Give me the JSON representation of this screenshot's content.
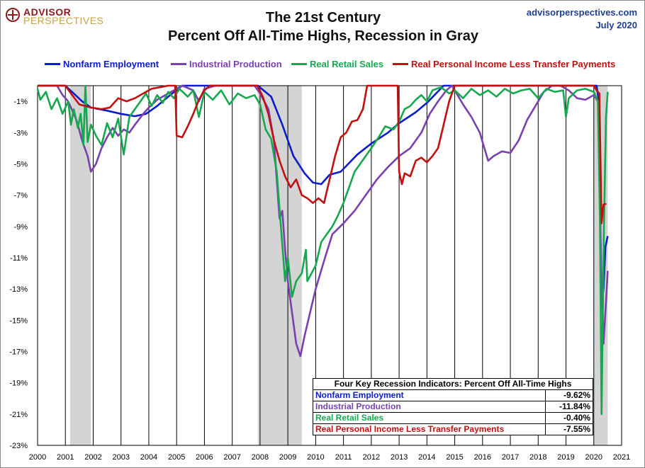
{
  "header": {
    "logo_line1": "ADVISOR",
    "logo_line2": "PERSPECTIVES",
    "site": "advisorperspectives.com",
    "date": "July 2020",
    "title_line1": "The 21st Century",
    "title_line2": "Percent Off All-Time Highs, Recession in Gray"
  },
  "chart_data": {
    "type": "line",
    "title": "The 21st Century Percent Off All-Time Highs, Recession in Gray",
    "ylim": [
      -23,
      0
    ],
    "y_ticks": [
      "-1%",
      "-3%",
      "-5%",
      "-7%",
      "-9%",
      "-11%",
      "-13%",
      "-15%",
      "-17%",
      "-19%",
      "-21%",
      "-23%"
    ],
    "x_ticks": [
      "2000",
      "2001",
      "2002",
      "2003",
      "2004",
      "2005",
      "2006",
      "2007",
      "2008",
      "2009",
      "2010",
      "2011",
      "2012",
      "2013",
      "2014",
      "2015",
      "2016",
      "2017",
      "2018",
      "2019",
      "2020",
      "2021"
    ],
    "xlim": [
      2000,
      2021
    ],
    "recessions": [
      [
        2001.17,
        2001.92
      ],
      [
        2007.92,
        2009.5
      ],
      [
        2020.0,
        2020.5
      ]
    ],
    "grid": "vertical gridlines at each year",
    "legend_position": "top",
    "series": [
      {
        "name": "Nonfarm Employment",
        "color": "#0a1ccc",
        "points": [
          [
            2000,
            0
          ],
          [
            2001.0,
            0
          ],
          [
            2001.3,
            -0.5
          ],
          [
            2001.6,
            -1.0
          ],
          [
            2001.92,
            -1.4
          ],
          [
            2002.5,
            -1.6
          ],
          [
            2003.0,
            -1.8
          ],
          [
            2003.5,
            -1.95
          ],
          [
            2003.9,
            -1.8
          ],
          [
            2004.3,
            -1.3
          ],
          [
            2004.7,
            -0.7
          ],
          [
            2005.2,
            0
          ],
          [
            2007.92,
            0
          ],
          [
            2008.4,
            -0.7
          ],
          [
            2008.8,
            -2.5
          ],
          [
            2009.2,
            -4.5
          ],
          [
            2009.6,
            -5.6
          ],
          [
            2009.9,
            -6.2
          ],
          [
            2010.2,
            -6.3
          ],
          [
            2010.5,
            -5.7
          ],
          [
            2010.9,
            -5.5
          ],
          [
            2011.5,
            -4.4
          ],
          [
            2012.0,
            -3.7
          ],
          [
            2012.6,
            -3.0
          ],
          [
            2013.0,
            -2.4
          ],
          [
            2013.6,
            -1.7
          ],
          [
            2014.0,
            -1.1
          ],
          [
            2014.6,
            0
          ],
          [
            2020.1,
            0
          ],
          [
            2020.18,
            -1
          ],
          [
            2020.27,
            -14.0
          ],
          [
            2020.35,
            -13.0
          ],
          [
            2020.42,
            -10.3
          ],
          [
            2020.5,
            -9.62
          ]
        ]
      },
      {
        "name": "Industrial Production",
        "color": "#7a3fb0",
        "points": [
          [
            2000,
            0
          ],
          [
            2000.7,
            0
          ],
          [
            2000.9,
            -0.6
          ],
          [
            2001.1,
            -1.0
          ],
          [
            2001.4,
            -2.2
          ],
          [
            2001.6,
            -3.5
          ],
          [
            2001.8,
            -4.5
          ],
          [
            2001.92,
            -5.5
          ],
          [
            2002.1,
            -5.0
          ],
          [
            2002.3,
            -4.0
          ],
          [
            2002.5,
            -3.3
          ],
          [
            2002.7,
            -2.7
          ],
          [
            2002.9,
            -3.2
          ],
          [
            2003.1,
            -2.8
          ],
          [
            2003.3,
            -3.0
          ],
          [
            2003.5,
            -2.5
          ],
          [
            2003.8,
            -1.8
          ],
          [
            2004.0,
            -1.4
          ],
          [
            2004.3,
            -0.9
          ],
          [
            2004.6,
            -0.6
          ],
          [
            2004.9,
            -0.3
          ],
          [
            2005.2,
            0
          ],
          [
            2005.6,
            -0.3
          ],
          [
            2005.8,
            -1.0
          ],
          [
            2006.0,
            -0.2
          ],
          [
            2006.4,
            0
          ],
          [
            2007.8,
            0
          ],
          [
            2008.0,
            -0.5
          ],
          [
            2008.3,
            -1.5
          ],
          [
            2008.5,
            -3.5
          ],
          [
            2008.7,
            -8.5
          ],
          [
            2008.8,
            -8.0
          ],
          [
            2008.9,
            -10.5
          ],
          [
            2009.0,
            -12.5
          ],
          [
            2009.15,
            -14.5
          ],
          [
            2009.3,
            -16.5
          ],
          [
            2009.45,
            -17.3
          ],
          [
            2009.6,
            -16.0
          ],
          [
            2009.8,
            -14.5
          ],
          [
            2010.0,
            -13.0
          ],
          [
            2010.3,
            -11.2
          ],
          [
            2010.6,
            -9.5
          ],
          [
            2011.0,
            -8.8
          ],
          [
            2011.4,
            -8.0
          ],
          [
            2011.8,
            -7.0
          ],
          [
            2012.2,
            -6.0
          ],
          [
            2012.6,
            -5.2
          ],
          [
            2013.0,
            -4.5
          ],
          [
            2013.4,
            -4.0
          ],
          [
            2013.8,
            -3.0
          ],
          [
            2014.1,
            -1.8
          ],
          [
            2014.4,
            -1.0
          ],
          [
            2014.7,
            -0.3
          ],
          [
            2014.9,
            0
          ],
          [
            2015.0,
            -0.3
          ],
          [
            2015.3,
            -1.2
          ],
          [
            2015.6,
            -2.0
          ],
          [
            2015.9,
            -3.0
          ],
          [
            2016.2,
            -4.8
          ],
          [
            2016.4,
            -4.5
          ],
          [
            2016.7,
            -4.2
          ],
          [
            2017.0,
            -4.3
          ],
          [
            2017.3,
            -3.5
          ],
          [
            2017.6,
            -2.2
          ],
          [
            2017.9,
            -1.3
          ],
          [
            2018.2,
            -0.4
          ],
          [
            2018.5,
            0
          ],
          [
            2018.8,
            0
          ],
          [
            2019.1,
            -0.3
          ],
          [
            2019.4,
            -0.8
          ],
          [
            2019.7,
            -0.9
          ],
          [
            2020.0,
            -0.6
          ],
          [
            2020.15,
            -1.0
          ],
          [
            2020.27,
            -12.0
          ],
          [
            2020.35,
            -16.5
          ],
          [
            2020.45,
            -13.5
          ],
          [
            2020.5,
            -11.84
          ]
        ]
      },
      {
        "name": "Real Retail Sales",
        "color": "#16a84e",
        "points": [
          [
            2000,
            -0.2
          ],
          [
            2000.1,
            -0.9
          ],
          [
            2000.3,
            -0.4
          ],
          [
            2000.5,
            -1.5
          ],
          [
            2000.7,
            -0.8
          ],
          [
            2000.9,
            -1.8
          ],
          [
            2001.1,
            -1.0
          ],
          [
            2001.2,
            -2.5
          ],
          [
            2001.3,
            -1.5
          ],
          [
            2001.45,
            -2.7
          ],
          [
            2001.55,
            -1.8
          ],
          [
            2001.65,
            -3.8
          ],
          [
            2001.72,
            0
          ],
          [
            2001.8,
            -3.6
          ],
          [
            2001.92,
            -2.5
          ],
          [
            2002.1,
            -3.2
          ],
          [
            2002.3,
            -3.8
          ],
          [
            2002.5,
            -2.4
          ],
          [
            2002.7,
            -3.3
          ],
          [
            2002.9,
            -2.1
          ],
          [
            2003.1,
            -4.4
          ],
          [
            2003.3,
            -2.0
          ],
          [
            2003.5,
            -1.5
          ],
          [
            2003.7,
            -1.0
          ],
          [
            2003.9,
            -0.5
          ],
          [
            2004.1,
            -1.3
          ],
          [
            2004.3,
            -0.6
          ],
          [
            2004.5,
            -1.1
          ],
          [
            2004.7,
            -0.4
          ],
          [
            2004.9,
            -0.8
          ],
          [
            2005.1,
            -0.2
          ],
          [
            2005.4,
            -0.7
          ],
          [
            2005.6,
            -0.3
          ],
          [
            2005.8,
            -2.0
          ],
          [
            2006.0,
            -0.4
          ],
          [
            2006.3,
            -0.9
          ],
          [
            2006.6,
            -0.3
          ],
          [
            2006.9,
            -1.2
          ],
          [
            2007.2,
            -0.5
          ],
          [
            2007.5,
            -0.8
          ],
          [
            2007.8,
            -0.6
          ],
          [
            2008.0,
            -1.2
          ],
          [
            2008.2,
            -2.8
          ],
          [
            2008.4,
            -3.4
          ],
          [
            2008.6,
            -5.5
          ],
          [
            2008.75,
            -9.0
          ],
          [
            2008.9,
            -12.5
          ],
          [
            2009.0,
            -11.0
          ],
          [
            2009.15,
            -13.5
          ],
          [
            2009.3,
            -12.5
          ],
          [
            2009.5,
            -12.0
          ],
          [
            2009.65,
            -10.5
          ],
          [
            2009.7,
            -12.5
          ],
          [
            2009.85,
            -12.0
          ],
          [
            2010.0,
            -11.5
          ],
          [
            2010.2,
            -10.0
          ],
          [
            2010.4,
            -9.5
          ],
          [
            2010.6,
            -9.0
          ],
          [
            2010.8,
            -8.3
          ],
          [
            2011.0,
            -7.5
          ],
          [
            2011.2,
            -6.5
          ],
          [
            2011.4,
            -5.5
          ],
          [
            2011.6,
            -5.0
          ],
          [
            2011.8,
            -4.5
          ],
          [
            2012.0,
            -4.0
          ],
          [
            2012.3,
            -3.2
          ],
          [
            2012.5,
            -2.6
          ],
          [
            2012.8,
            -2.8
          ],
          [
            2013.0,
            -2.3
          ],
          [
            2013.2,
            -1.5
          ],
          [
            2013.4,
            -1.3
          ],
          [
            2013.6,
            -0.9
          ],
          [
            2013.8,
            -0.6
          ],
          [
            2014.0,
            -1.0
          ],
          [
            2014.2,
            -0.3
          ],
          [
            2014.5,
            -0.1
          ],
          [
            2014.8,
            -0.5
          ],
          [
            2015.0,
            -0.3
          ],
          [
            2015.3,
            -0.8
          ],
          [
            2015.6,
            -0.2
          ],
          [
            2015.9,
            -0.6
          ],
          [
            2016.2,
            -0.3
          ],
          [
            2016.5,
            -0.7
          ],
          [
            2016.8,
            -0.2
          ],
          [
            2017.1,
            -0.5
          ],
          [
            2017.4,
            -0.3
          ],
          [
            2017.7,
            -0.2
          ],
          [
            2018.0,
            -0.8
          ],
          [
            2018.3,
            -0.2
          ],
          [
            2018.6,
            -0.4
          ],
          [
            2018.9,
            -0.3
          ],
          [
            2019.0,
            -2.0
          ],
          [
            2019.1,
            -0.8
          ],
          [
            2019.4,
            -0.3
          ],
          [
            2019.7,
            -0.2
          ],
          [
            2020.0,
            -0.4
          ],
          [
            2020.15,
            -1.0
          ],
          [
            2020.22,
            -8.5
          ],
          [
            2020.28,
            -21.0
          ],
          [
            2020.36,
            -9.5
          ],
          [
            2020.44,
            -2.0
          ],
          [
            2020.5,
            -0.4
          ]
        ]
      },
      {
        "name": "Real Personal Income Less Transfer Payments",
        "color": "#c01010",
        "points": [
          [
            2000,
            0
          ],
          [
            2001.0,
            0
          ],
          [
            2001.2,
            -0.5
          ],
          [
            2001.5,
            -1.2
          ],
          [
            2001.92,
            -1.4
          ],
          [
            2002.3,
            -1.5
          ],
          [
            2002.6,
            -1.4
          ],
          [
            2002.9,
            -0.8
          ],
          [
            2003.2,
            -1.0
          ],
          [
            2003.5,
            -0.8
          ],
          [
            2003.8,
            -0.5
          ],
          [
            2004.1,
            -0.2
          ],
          [
            2004.4,
            -0.1
          ],
          [
            2004.7,
            0
          ],
          [
            2004.95,
            0
          ],
          [
            2005.0,
            -3.2
          ],
          [
            2005.2,
            -3.3
          ],
          [
            2005.4,
            -2.6
          ],
          [
            2005.6,
            -1.8
          ],
          [
            2005.8,
            -0.9
          ],
          [
            2006.0,
            -0.3
          ],
          [
            2006.2,
            0
          ],
          [
            2007.9,
            0
          ],
          [
            2008.1,
            -0.7
          ],
          [
            2008.3,
            -1.8
          ],
          [
            2008.5,
            -3.5
          ],
          [
            2008.7,
            -4.8
          ],
          [
            2008.9,
            -5.8
          ],
          [
            2009.1,
            -6.5
          ],
          [
            2009.3,
            -6.0
          ],
          [
            2009.5,
            -7.0
          ],
          [
            2009.7,
            -7.2
          ],
          [
            2009.9,
            -7.5
          ],
          [
            2010.1,
            -7.2
          ],
          [
            2010.3,
            -7.5
          ],
          [
            2010.5,
            -6.0
          ],
          [
            2010.7,
            -4.5
          ],
          [
            2010.9,
            -3.3
          ],
          [
            2011.1,
            -3.0
          ],
          [
            2011.3,
            -2.3
          ],
          [
            2011.5,
            -2.2
          ],
          [
            2011.7,
            -1.5
          ],
          [
            2011.85,
            0
          ],
          [
            2012.95,
            0
          ],
          [
            2013.0,
            -5.5
          ],
          [
            2013.1,
            -6.3
          ],
          [
            2013.2,
            -5.6
          ],
          [
            2013.4,
            -5.8
          ],
          [
            2013.6,
            -4.8
          ],
          [
            2013.8,
            -4.6
          ],
          [
            2014.0,
            -4.9
          ],
          [
            2014.2,
            -4.5
          ],
          [
            2014.4,
            -4.0
          ],
          [
            2014.6,
            -2.5
          ],
          [
            2014.8,
            -1.0
          ],
          [
            2015.0,
            0
          ],
          [
            2020.0,
            0
          ],
          [
            2020.1,
            -0.3
          ],
          [
            2020.2,
            -0.5
          ],
          [
            2020.28,
            -8.8
          ],
          [
            2020.35,
            -7.6
          ],
          [
            2020.45,
            -7.55
          ]
        ]
      }
    ]
  },
  "legend": [
    {
      "name": "Nonfarm Employment",
      "color": "#0a1ccc"
    },
    {
      "name": "Industrial Production",
      "color": "#7a3fb0"
    },
    {
      "name": "Real Retail Sales",
      "color": "#16a84e"
    },
    {
      "name": "Real Personal Income Less Transfer Payments",
      "color": "#c01010"
    }
  ],
  "table": {
    "header": "Four Key Recession Indicators: Percent Off All-Time Highs",
    "rows": [
      {
        "label": "Nonfarm Employment",
        "value": "-9.62%",
        "color": "#0a1ccc"
      },
      {
        "label": "Industrial Production",
        "value": "-11.84%",
        "color": "#7a3fb0"
      },
      {
        "label": "Real Retail Sales",
        "value": "-0.40%",
        "color": "#16a84e"
      },
      {
        "label": "Real Personal Income Less Transfer Payments",
        "value": "-7.55%",
        "color": "#c01010"
      }
    ]
  }
}
